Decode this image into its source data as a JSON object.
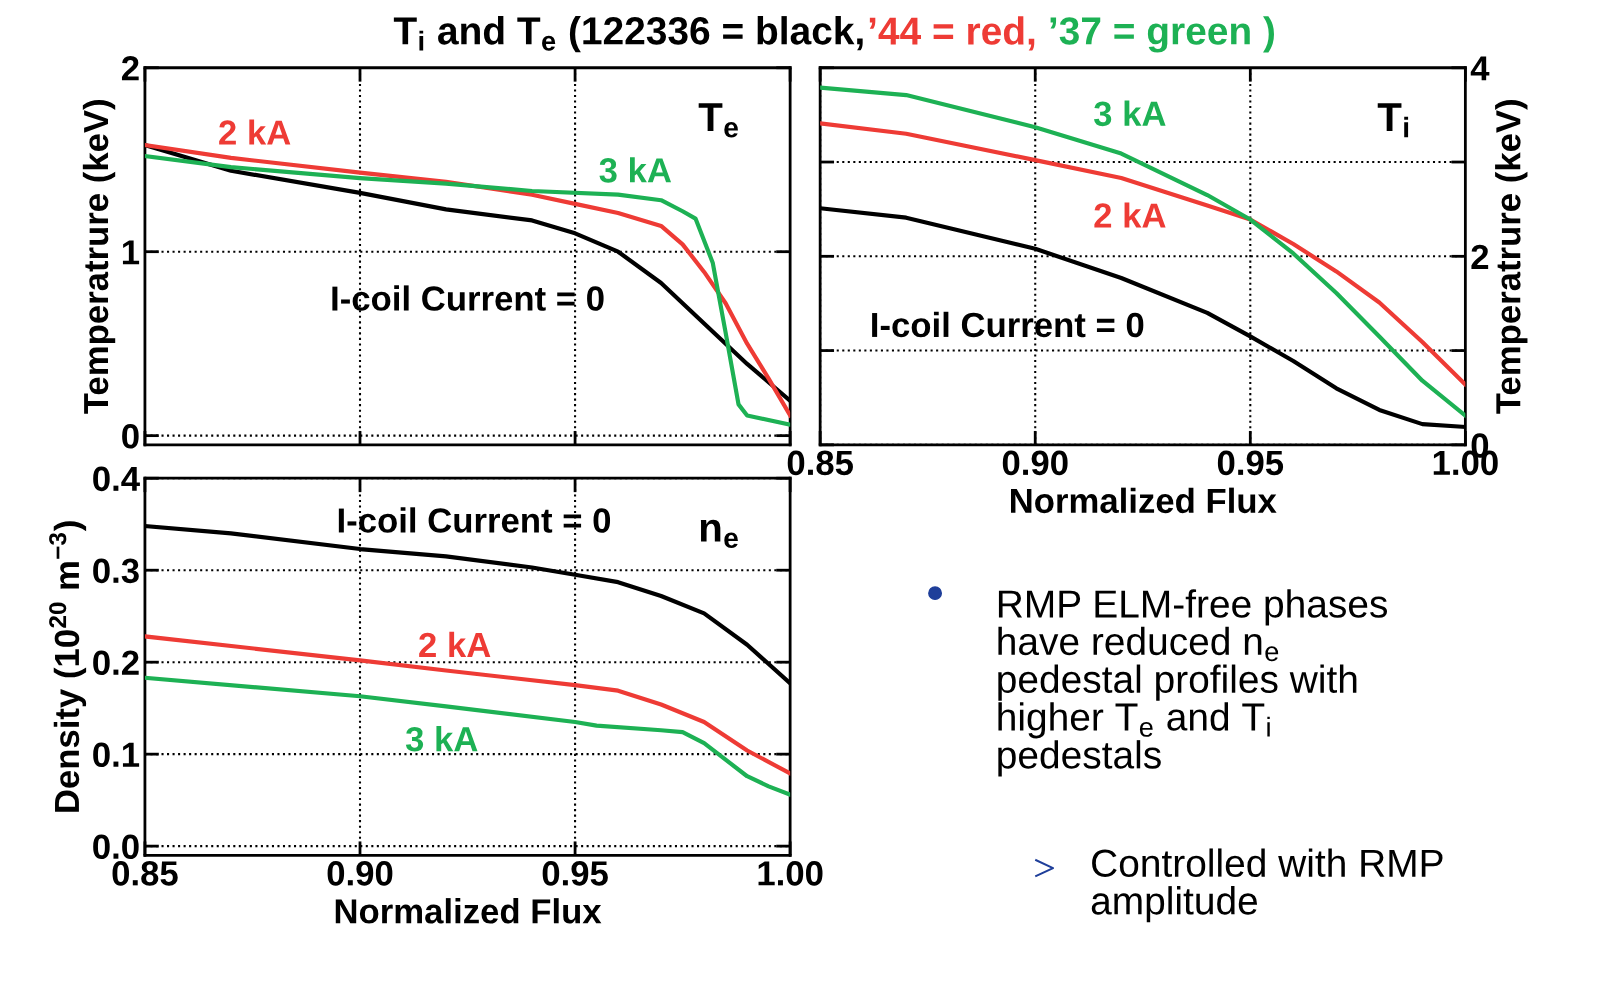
{
  "chart_data": [
    {
      "type": "line",
      "title": "T$_{i}$ and T$_{e}$ (122336 = black, ’44 = red, ’37 = green )",
      "ylabel": "Temperatrure (keV)",
      "annotations": [
        "T$_{e}$"
      ],
      "tick_labels": "y",
      "grid": true,
      "xlim": [
        0.85,
        1.0
      ],
      "ylim": [
        -0.05,
        2
      ],
      "xticks": [
        {
          "value": 0.85,
          "label": null
        },
        {
          "value": 0.9,
          "label": null
        },
        {
          "value": 0.95,
          "label": null
        },
        {
          "value": 1.0,
          "label": null
        }
      ],
      "yticks": [
        0,
        1,
        2
      ],
      "series": [
        {
          "name": "I-coil Current = 0",
          "color": "#000000",
          "x": [
            0.85,
            0.87,
            0.9,
            0.92,
            0.94,
            0.95,
            0.96,
            0.97,
            0.98,
            0.99,
            1.0
          ],
          "values": [
            1.58,
            1.44,
            1.32,
            1.23,
            1.17,
            1.1,
            1.0,
            0.83,
            0.61,
            0.39,
            0.19
          ]
        },
        {
          "name": "2 kA",
          "color": "#ee3b35",
          "x": [
            0.85,
            0.87,
            0.9,
            0.92,
            0.94,
            0.95,
            0.96,
            0.97,
            0.975,
            0.98,
            0.985,
            0.99,
            0.995,
            1.0
          ],
          "values": [
            1.58,
            1.51,
            1.43,
            1.38,
            1.31,
            1.26,
            1.21,
            1.14,
            1.04,
            0.89,
            0.72,
            0.5,
            0.31,
            0.11
          ]
        },
        {
          "name": "3 kA",
          "color": "#1db154",
          "x": [
            0.85,
            0.87,
            0.9,
            0.92,
            0.94,
            0.96,
            0.97,
            0.975,
            0.978,
            0.982,
            0.985,
            0.988,
            0.99,
            1.0
          ],
          "values": [
            1.52,
            1.46,
            1.4,
            1.37,
            1.33,
            1.31,
            1.28,
            1.22,
            1.18,
            0.94,
            0.56,
            0.17,
            0.11,
            0.06
          ]
        }
      ]
    },
    {
      "type": "line",
      "xlabel": "Normalized Flux",
      "ylabel": "Temperatrure (keV)",
      "annotations": [
        "T$_{i}$"
      ],
      "grid": true,
      "xlim": [
        0.85,
        1.0
      ],
      "ylim": [
        0,
        4
      ],
      "xticks": [
        {
          "value": 0.85,
          "label": "0.85"
        },
        {
          "value": 0.9,
          "label": "0.90"
        },
        {
          "value": 0.95,
          "label": "0.95"
        },
        {
          "value": 1.0,
          "label": "1.00"
        }
      ],
      "yticks": [
        0,
        {
          "value": 1,
          "label": null
        },
        2,
        {
          "value": 3,
          "label": null
        },
        4
      ],
      "series": [
        {
          "name": "I-coil Current = 0",
          "color": "#000000",
          "x": [
            0.85,
            0.87,
            0.9,
            0.92,
            0.94,
            0.95,
            0.96,
            0.97,
            0.98,
            0.99,
            1.0
          ],
          "values": [
            2.51,
            2.41,
            2.08,
            1.77,
            1.4,
            1.15,
            0.89,
            0.6,
            0.37,
            0.22,
            0.19
          ]
        },
        {
          "name": "2 kA",
          "color": "#ee3b35",
          "x": [
            0.85,
            0.87,
            0.9,
            0.92,
            0.94,
            0.95,
            0.96,
            0.97,
            0.98,
            0.99,
            1.0
          ],
          "values": [
            3.41,
            3.3,
            3.02,
            2.83,
            2.54,
            2.39,
            2.13,
            1.84,
            1.51,
            1.09,
            0.64
          ]
        },
        {
          "name": "3 kA",
          "color": "#1db154",
          "x": [
            0.85,
            0.87,
            0.9,
            0.92,
            0.94,
            0.95,
            0.96,
            0.97,
            0.98,
            0.99,
            1.0
          ],
          "values": [
            3.79,
            3.71,
            3.37,
            3.09,
            2.65,
            2.39,
            2.03,
            1.61,
            1.15,
            0.68,
            0.31
          ]
        }
      ]
    },
    {
      "type": "line",
      "xlabel": "Normalized Flux",
      "ylabel": "Density (10$^{20}$ m$^{−3}$)",
      "annotations": [
        "n$_{e}$"
      ],
      "grid": true,
      "xlim": [
        0.85,
        1.0
      ],
      "ylim": [
        -0.01,
        0.4
      ],
      "xticks": [
        {
          "value": 0.85,
          "label": "0.85"
        },
        {
          "value": 0.9,
          "label": "0.90"
        },
        {
          "value": 0.95,
          "label": "0.95"
        },
        {
          "value": 1.0,
          "label": "1.00"
        }
      ],
      "yticks": [
        {
          "value": 0,
          "label": "0.0"
        },
        0.1,
        0.2,
        0.3,
        0.4
      ],
      "series": [
        {
          "name": "I-coil Current = 0",
          "color": "#000000",
          "x": [
            0.85,
            0.87,
            0.9,
            0.92,
            0.94,
            0.95,
            0.96,
            0.97,
            0.98,
            0.99,
            1.0
          ],
          "values": [
            0.348,
            0.34,
            0.323,
            0.315,
            0.303,
            0.295,
            0.287,
            0.272,
            0.253,
            0.219,
            0.177
          ]
        },
        {
          "name": "2 kA",
          "color": "#ee3b35",
          "x": [
            0.85,
            0.9,
            0.92,
            0.95,
            0.96,
            0.97,
            0.98,
            0.99,
            1.0
          ],
          "values": [
            0.228,
            0.202,
            0.191,
            0.175,
            0.169,
            0.154,
            0.135,
            0.104,
            0.079
          ]
        },
        {
          "name": "3 kA",
          "color": "#1db154",
          "x": [
            0.85,
            0.9,
            0.92,
            0.95,
            0.955,
            0.97,
            0.975,
            0.98,
            0.99,
            0.995,
            1.0
          ],
          "values": [
            0.183,
            0.163,
            0.152,
            0.135,
            0.131,
            0.126,
            0.124,
            0.112,
            0.076,
            0.065,
            0.056
          ]
        }
      ]
    },
    {
      "type": "other",
      "annotations": [
        "RMP ELM-free phases\nhave reduced n$_{e}$\npedestal profiles with\nhigher T$_{e}$ and T$_{i}$\npedestals",
        "Controlled with RMP\namplitude"
      ]
    }
  ]
}
